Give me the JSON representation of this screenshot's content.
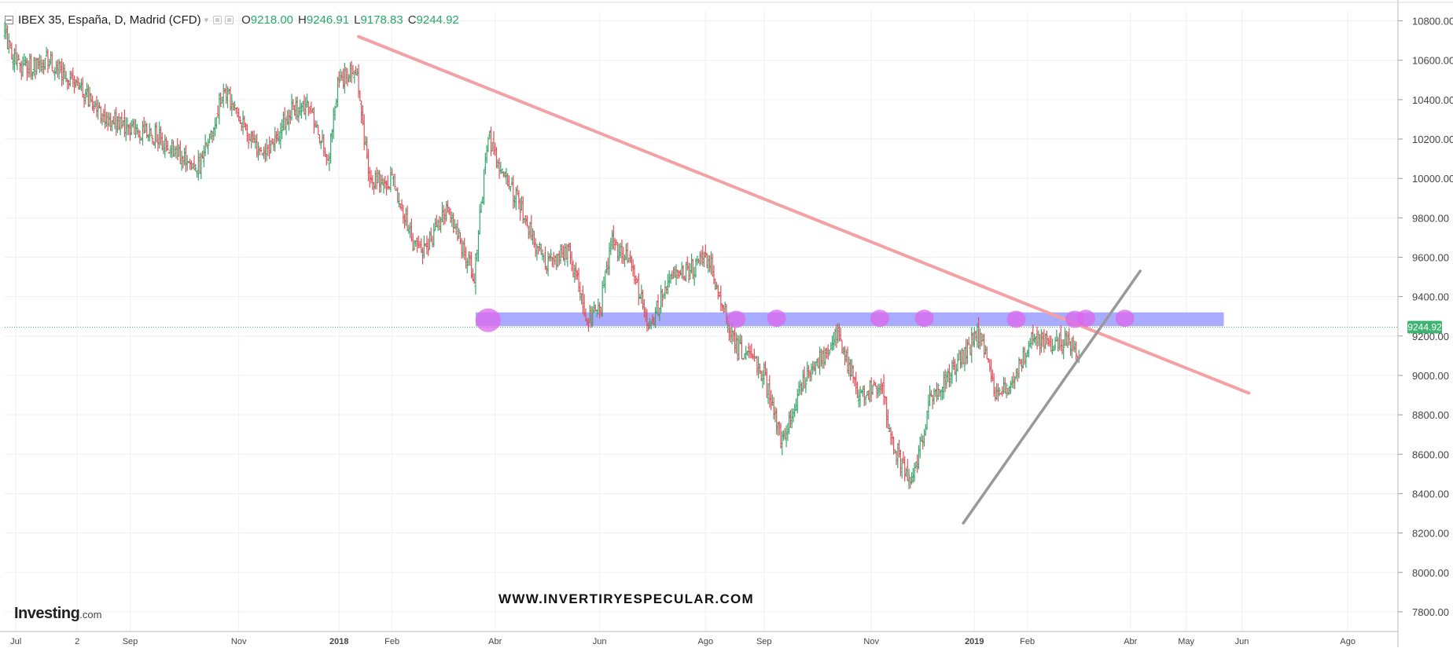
{
  "header": {
    "symbol": "IBEX 35, España, D, Madrid (CFD)",
    "open_label": "O",
    "open": "9218.00",
    "high_label": "H",
    "high": "9246.91",
    "low_label": "L",
    "low": "9178.83",
    "close_label": "C",
    "close": "9244.92"
  },
  "watermark": "WWW.INVERTIRYESPECULAR.COM",
  "logo": {
    "main": "Investing",
    "suffix": ".com"
  },
  "colors": {
    "up": "#3aa66b",
    "down": "#e0505a",
    "downtrend_line": "#f4a1a6",
    "uptrend_line": "#999999",
    "zone": "#9a9cff",
    "marker": "#dd66ee",
    "price_tag": "#3cb371",
    "grid": "#eef0f2"
  },
  "chart_data": {
    "type": "ohlc",
    "title": "IBEX 35, España, D, Madrid (CFD)",
    "ylim": [
      7700,
      10850
    ],
    "y_ticks": [
      "10800.00",
      "10600.00",
      "10400.00",
      "10200.00",
      "10000.00",
      "9800.00",
      "9600.00",
      "9400.00",
      "9200.00",
      "9000.00",
      "8800.00",
      "8600.00",
      "8400.00",
      "8200.00",
      "8000.00",
      "7800.00"
    ],
    "x_ticks": [
      "Jul",
      "2",
      "Sep",
      "Nov",
      "2018",
      "Feb",
      "Abr",
      "Jun",
      "Ago",
      "Sep",
      "Nov",
      "2019",
      "Feb",
      "Abr",
      "May",
      "Jun",
      "Ago"
    ],
    "last_price": "9244.92",
    "price_path": [
      [
        0,
        10720
      ],
      [
        12,
        10550
      ],
      [
        30,
        10600
      ],
      [
        55,
        10450
      ],
      [
        75,
        10300
      ],
      [
        90,
        10260
      ],
      [
        108,
        10220
      ],
      [
        122,
        10150
      ],
      [
        140,
        10060
      ],
      [
        158,
        10450
      ],
      [
        175,
        10200
      ],
      [
        185,
        10110
      ],
      [
        205,
        10340
      ],
      [
        218,
        10380
      ],
      [
        232,
        10100
      ],
      [
        240,
        10510
      ],
      [
        253,
        10520
      ],
      [
        262,
        9990
      ],
      [
        278,
        10000
      ],
      [
        292,
        9690
      ],
      [
        302,
        9640
      ],
      [
        318,
        9850
      ],
      [
        337,
        9500
      ],
      [
        347,
        10220
      ],
      [
        352,
        10120
      ],
      [
        370,
        9860
      ],
      [
        388,
        9560
      ],
      [
        405,
        9640
      ],
      [
        418,
        9280
      ],
      [
        428,
        9360
      ],
      [
        435,
        9680
      ],
      [
        448,
        9590
      ],
      [
        463,
        9240
      ],
      [
        478,
        9510
      ],
      [
        490,
        9530
      ],
      [
        505,
        9600
      ],
      [
        523,
        9170
      ],
      [
        545,
        9000
      ],
      [
        558,
        8660
      ],
      [
        575,
        9000
      ],
      [
        598,
        9200
      ],
      [
        612,
        8920
      ],
      [
        630,
        8930
      ],
      [
        638,
        8620
      ],
      [
        652,
        8470
      ],
      [
        665,
        8900
      ],
      [
        680,
        9030
      ],
      [
        700,
        9220
      ],
      [
        712,
        8900
      ],
      [
        720,
        8930
      ],
      [
        738,
        9200
      ],
      [
        751,
        9160
      ],
      [
        762,
        9170
      ],
      [
        772,
        9120
      ]
    ],
    "tick_positions": [
      {
        "label": "Jul",
        "day": 8
      },
      {
        "label": "2",
        "day": 52
      },
      {
        "label": "Sep",
        "day": 90
      },
      {
        "label": "Nov",
        "day": 168
      },
      {
        "label": "2018",
        "day": 240
      },
      {
        "label": "Feb",
        "day": 278
      },
      {
        "label": "Abr",
        "day": 352
      },
      {
        "label": "Jun",
        "day": 427
      },
      {
        "label": "Ago",
        "day": 503
      },
      {
        "label": "Sep",
        "day": 545
      },
      {
        "label": "Nov",
        "day": 622
      },
      {
        "label": "2019",
        "day": 696
      },
      {
        "label": "Feb",
        "day": 734
      },
      {
        "label": "Abr",
        "day": 808
      },
      {
        "label": "May",
        "day": 848
      },
      {
        "label": "Jun",
        "day": 888
      },
      {
        "label": "Ago",
        "day": 964
      }
    ],
    "downtrend_line": [
      [
        254,
        10720
      ],
      [
        893,
        8910
      ]
    ],
    "uptrend_line": [
      [
        688,
        8250
      ],
      [
        815,
        9530
      ]
    ],
    "support_zone": {
      "from_day": 338,
      "to_day": 875,
      "low": 9250,
      "high": 9320
    },
    "touch_markers": [
      {
        "day": 347,
        "price": 9280,
        "big": true
      },
      {
        "day": 525,
        "price": 9285
      },
      {
        "day": 554,
        "price": 9290
      },
      {
        "day": 628,
        "price": 9290
      },
      {
        "day": 660,
        "price": 9290
      },
      {
        "day": 726,
        "price": 9285
      },
      {
        "day": 768,
        "price": 9285
      },
      {
        "day": 776,
        "price": 9290
      },
      {
        "day": 804,
        "price": 9290
      }
    ],
    "last_day": 808
  }
}
